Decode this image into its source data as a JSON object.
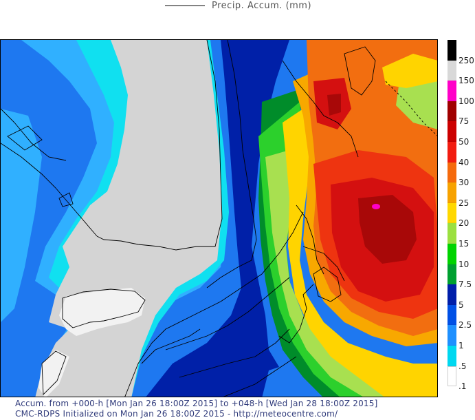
{
  "legend": {
    "series_label": "Precip. Accum. (mm)"
  },
  "footer": {
    "line1": "Accum. from +000-h [Mon Jan 26 18:00Z 2015] to +048-h [Wed Jan 28 18:00Z 2015]",
    "line2": "CMC-RDPS Initialized on Mon Jan 26 18:00Z 2015 - http://meteocentre.com/"
  },
  "colorbar": {
    "labels": [
      "250",
      "150",
      "100",
      "75",
      "50",
      "40",
      "30",
      "25",
      "20",
      "15",
      "10",
      "7.5",
      "5",
      "2.5",
      "1",
      ".5",
      ".1"
    ],
    "colors": [
      "#000000",
      "#d8d8d8",
      "#ff00c8",
      "#a00000",
      "#cc0000",
      "#f21c10",
      "#f56a0c",
      "#f7a200",
      "#ffd800",
      "#9be040",
      "#00d400",
      "#00a030",
      "#001eaa",
      "#0050e6",
      "#1e90ff",
      "#00d8f0",
      "#ffffff"
    ]
  },
  "map": {
    "colors": {
      "gray": "#d4d4d4",
      "white": "#f2f2f2",
      "light_cyan": "#10e0f0",
      "cyan_blue": "#30b0ff",
      "med_blue": "#1e78f0",
      "dark_blue": "#0020a8",
      "dark_green": "#008c2a",
      "green": "#2cd02c",
      "light_green": "#a8e050",
      "yellow": "#ffd400",
      "yellow_orange": "#f8a800",
      "orange": "#f26e10",
      "red_orange": "#ee3410",
      "red": "#d41010",
      "dark_red": "#a80808",
      "magenta": "#ff00c8"
    }
  }
}
